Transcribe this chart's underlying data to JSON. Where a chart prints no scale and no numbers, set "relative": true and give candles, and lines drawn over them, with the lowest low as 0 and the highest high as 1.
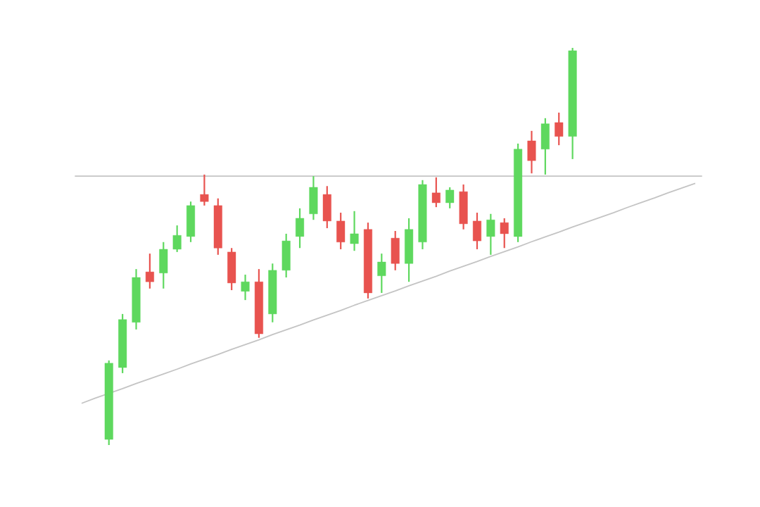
{
  "chart_data": {
    "type": "candlestick",
    "relative": true,
    "categories": [
      null,
      null,
      null,
      null,
      null,
      null,
      null,
      null,
      null,
      null,
      null,
      null,
      null,
      null,
      null,
      null,
      null,
      null,
      null,
      null,
      null,
      null,
      null,
      null,
      null,
      null,
      null,
      null,
      null,
      null,
      null,
      null,
      null,
      null,
      null,
      null,
      null,
      null,
      null,
      null,
      null,
      null,
      null,
      null,
      null,
      null
    ],
    "ohlc": [
      null,
      null,
      [
        0.014,
        0.213,
        0,
        0.206
      ],
      [
        0.195,
        0.33,
        0.181,
        0.316
      ],
      [
        0.309,
        0.443,
        0.291,
        0.422
      ],
      [
        0.436,
        0.482,
        0.394,
        0.411
      ],
      [
        0.433,
        0.511,
        0.394,
        0.493
      ],
      [
        0.493,
        0.553,
        0.486,
        0.528
      ],
      [
        0.525,
        0.613,
        0.511,
        0.603
      ],
      [
        0.631,
        0.681,
        0.603,
        0.613
      ],
      [
        0.603,
        0.621,
        0.479,
        0.496
      ],
      [
        0.486,
        0.496,
        0.39,
        0.408
      ],
      [
        0.387,
        0.429,
        0.365,
        0.411
      ],
      [
        0.411,
        0.443,
        0.27,
        0.28
      ],
      [
        0.33,
        0.457,
        0.309,
        0.44
      ],
      [
        0.44,
        0.532,
        0.422,
        0.514
      ],
      [
        0.525,
        0.596,
        0.496,
        0.571
      ],
      [
        0.582,
        0.677,
        0.567,
        0.649
      ],
      [
        0.631,
        0.652,
        0.546,
        0.564
      ],
      [
        0.564,
        0.585,
        0.493,
        0.511
      ],
      [
        0.507,
        0.589,
        0.489,
        0.532
      ],
      [
        0.543,
        0.56,
        0.369,
        0.383
      ],
      [
        0.426,
        0.482,
        0.383,
        0.461
      ],
      [
        0.521,
        0.539,
        0.44,
        0.457
      ],
      [
        0.457,
        0.571,
        0.411,
        0.543
      ],
      [
        0.511,
        0.667,
        0.493,
        0.656
      ],
      [
        0.635,
        0.674,
        0.599,
        0.61
      ],
      [
        0.61,
        0.649,
        0.596,
        0.642
      ],
      [
        0.638,
        0.656,
        0.543,
        0.557
      ],
      [
        0.564,
        0.585,
        0.493,
        0.514
      ],
      [
        0.525,
        0.582,
        0.479,
        0.567
      ],
      [
        0.56,
        0.571,
        0.496,
        0.532
      ],
      [
        0.525,
        0.759,
        0.511,
        0.745
      ],
      [
        0.766,
        0.791,
        0.684,
        0.716
      ],
      [
        0.745,
        0.823,
        0.681,
        0.809
      ],
      [
        0.812,
        0.837,
        0.755,
        0.777
      ],
      [
        0.777,
        1,
        0.72,
        0.993
      ],
      null,
      null,
      null,
      null,
      null,
      null,
      null,
      null,
      null
    ],
    "colors": [
      null,
      null,
      "#5ed85e",
      "#5ed85e",
      "#5ed85e",
      "#e8534f",
      "#5ed85e",
      "#5ed85e",
      "#5ed85e",
      "#e8534f",
      "#e8534f",
      "#e8534f",
      "#5ed85e",
      "#e8534f",
      "#5ed85e",
      "#5ed85e",
      "#5ed85e",
      "#5ed85e",
      "#e8534f",
      "#e8534f",
      "#5ed85e",
      "#e8534f",
      "#5ed85e",
      "#e8534f",
      "#5ed85e",
      "#5ed85e",
      "#e8534f",
      "#5ed85e",
      "#e8534f",
      "#e8534f",
      "#5ed85e",
      "#e8534f",
      "#5ed85e",
      "#e8534f",
      "#5ed85e",
      "#e8534f",
      "#5ed85e",
      null,
      null,
      null,
      null,
      null,
      null,
      null,
      null,
      null
    ],
    "ref_lines": [
      {
        "axis": "y",
        "value": 0.677,
        "color": "#c4c4c4"
      }
    ],
    "series": [
      {
        "type": "line",
        "color": "#c4c4c4",
        "values": [
          0.105,
          0.118,
          0.13,
          0.142,
          0.155,
          0.167,
          0.179,
          0.191,
          0.204,
          0.216,
          0.228,
          0.241,
          0.253,
          0.265,
          0.278,
          0.29,
          0.302,
          0.315,
          0.327,
          0.339,
          0.352,
          0.364,
          0.376,
          0.388,
          0.401,
          0.413,
          0.425,
          0.438,
          0.45,
          0.462,
          0.475,
          0.487,
          0.499,
          0.512,
          0.524,
          0.536,
          0.549,
          0.561,
          0.573,
          0.585,
          0.598,
          0.61,
          0.622,
          0.635,
          0.647,
          0.659
        ]
      }
    ]
  }
}
